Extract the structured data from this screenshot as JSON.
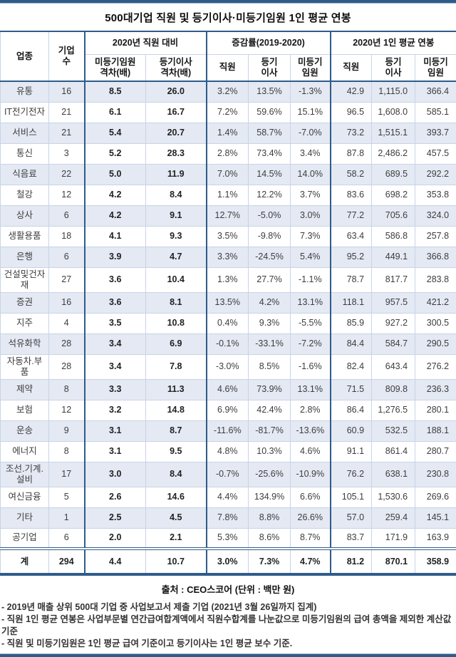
{
  "title": "500대기업 직원 및 등기이사·미등기임원 1인 평균 연봉",
  "colors": {
    "border_blue": "#2e5c8a",
    "row_stripe": "#e4e9f3"
  },
  "chart_data": {
    "type": "table",
    "title": "500대기업 직원 및 등기이사·미등기임원 1인 평균 연봉",
    "unit": "백만 원",
    "header": {
      "industry": "업종",
      "companies": "기업\n수",
      "group_gap": "2020년 직원 대비",
      "group_change": "증감률(2019-2020)",
      "group_pay": "2020년 1인 평균 연봉",
      "sub_gap_exec": "미등기임원\n격차(배)",
      "sub_gap_director": "등기이사\n격차(배)",
      "sub_chg_employee": "직원",
      "sub_chg_director": "등기\n이사",
      "sub_chg_exec": "미등기\n임원",
      "sub_pay_employee": "직원",
      "sub_pay_director": "등기\n이사",
      "sub_pay_exec": "미등기\n임원"
    },
    "rows": [
      [
        "유통",
        "16",
        "8.5",
        "26.0",
        "3.2%",
        "13.5%",
        "-1.3%",
        "42.9",
        "1,115.0",
        "366.4"
      ],
      [
        "IT전기전자",
        "21",
        "6.1",
        "16.7",
        "7.2%",
        "59.6%",
        "15.1%",
        "96.5",
        "1,608.0",
        "585.1"
      ],
      [
        "서비스",
        "21",
        "5.4",
        "20.7",
        "1.4%",
        "58.7%",
        "-7.0%",
        "73.2",
        "1,515.1",
        "393.7"
      ],
      [
        "통신",
        "3",
        "5.2",
        "28.3",
        "2.8%",
        "73.4%",
        "3.4%",
        "87.8",
        "2,486.2",
        "457.5"
      ],
      [
        "식음료",
        "22",
        "5.0",
        "11.9",
        "7.0%",
        "14.5%",
        "14.0%",
        "58.2",
        "689.5",
        "292.2"
      ],
      [
        "철강",
        "12",
        "4.2",
        "8.4",
        "1.1%",
        "12.2%",
        "3.7%",
        "83.6",
        "698.2",
        "353.8"
      ],
      [
        "상사",
        "6",
        "4.2",
        "9.1",
        "12.7%",
        "-5.0%",
        "3.0%",
        "77.2",
        "705.6",
        "324.0"
      ],
      [
        "생활용품",
        "18",
        "4.1",
        "9.3",
        "3.5%",
        "-9.8%",
        "7.3%",
        "63.4",
        "586.8",
        "257.8"
      ],
      [
        "은행",
        "6",
        "3.9",
        "4.7",
        "3.3%",
        "-24.5%",
        "5.4%",
        "95.2",
        "449.1",
        "366.8"
      ],
      [
        "건설및건자재",
        "27",
        "3.6",
        "10.4",
        "1.3%",
        "27.7%",
        "-1.1%",
        "78.7",
        "817.7",
        "283.8"
      ],
      [
        "증권",
        "16",
        "3.6",
        "8.1",
        "13.5%",
        "4.2%",
        "13.1%",
        "118.1",
        "957.5",
        "421.2"
      ],
      [
        "지주",
        "4",
        "3.5",
        "10.8",
        "0.4%",
        "9.3%",
        "-5.5%",
        "85.9",
        "927.2",
        "300.5"
      ],
      [
        "석유화학",
        "28",
        "3.4",
        "6.9",
        "-0.1%",
        "-33.1%",
        "-7.2%",
        "84.4",
        "584.7",
        "290.5"
      ],
      [
        "자동차.부품",
        "28",
        "3.4",
        "7.8",
        "-3.0%",
        "8.5%",
        "-1.6%",
        "82.4",
        "643.4",
        "276.2"
      ],
      [
        "제약",
        "8",
        "3.3",
        "11.3",
        "4.6%",
        "73.9%",
        "13.1%",
        "71.5",
        "809.8",
        "236.3"
      ],
      [
        "보험",
        "12",
        "3.2",
        "14.8",
        "6.9%",
        "42.4%",
        "2.8%",
        "86.4",
        "1,276.5",
        "280.1"
      ],
      [
        "운송",
        "9",
        "3.1",
        "8.7",
        "-11.6%",
        "-81.7%",
        "-13.6%",
        "60.9",
        "532.5",
        "188.1"
      ],
      [
        "에너지",
        "8",
        "3.1",
        "9.5",
        "4.8%",
        "10.3%",
        "4.6%",
        "91.1",
        "861.4",
        "280.7"
      ],
      [
        "조선.기계.설비",
        "17",
        "3.0",
        "8.4",
        "-0.7%",
        "-25.6%",
        "-10.9%",
        "76.2",
        "638.1",
        "230.8"
      ],
      [
        "여신금융",
        "5",
        "2.6",
        "14.6",
        "4.4%",
        "134.9%",
        "6.6%",
        "105.1",
        "1,530.6",
        "269.6"
      ],
      [
        "기타",
        "1",
        "2.5",
        "4.5",
        "7.8%",
        "8.8%",
        "26.6%",
        "57.0",
        "259.4",
        "145.1"
      ],
      [
        "공기업",
        "6",
        "2.0",
        "2.1",
        "5.3%",
        "8.6%",
        "8.7%",
        "83.7",
        "171.9",
        "163.9"
      ]
    ],
    "total": [
      "계",
      "294",
      "4.4",
      "10.7",
      "3.0%",
      "7.3%",
      "4.7%",
      "81.2",
      "870.1",
      "358.9"
    ],
    "source": "출처 : CEO스코어 (단위 : 백만 원)",
    "footnotes": [
      "- 2019년 매출 상위 500대 기업 중 사업보고서 제출 기업 (2021년 3월 26일까지 집계)",
      "- 직원 1인 평균 연봉은 사업부문별 연간급여합계액에서 직원수합계를 나눈값으로 미등기임원의 급여 총액을 제외한 계산값 기준",
      "- 직원 및 미등기임원은 1인 평균 급여 기준이고 등기이사는 1인 평균 보수 기준."
    ]
  }
}
